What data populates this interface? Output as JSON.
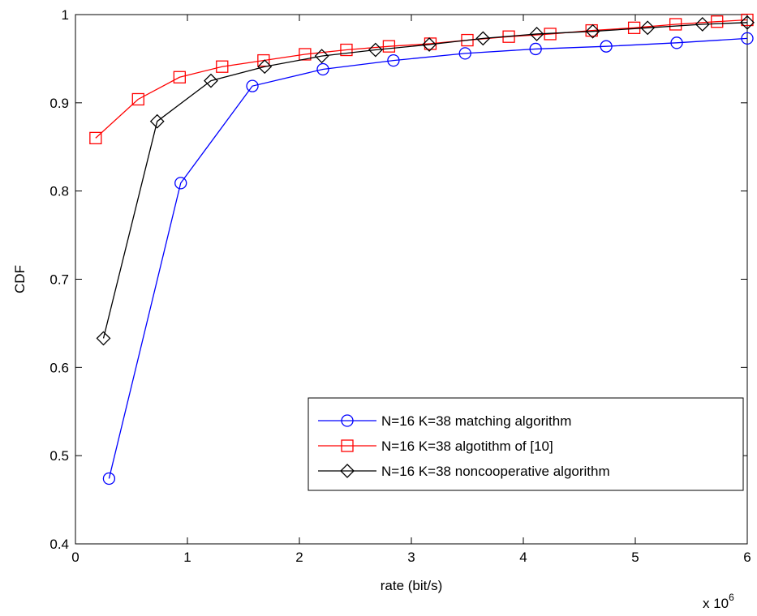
{
  "chart_data": {
    "type": "line",
    "title": "",
    "xlabel": "rate (bit/s)",
    "ylabel": "CDF",
    "x_multiplier": {
      "base": "x 10",
      "exponent": "6"
    },
    "xlim": [
      0,
      6
    ],
    "ylim": [
      0.4,
      1.0
    ],
    "x_ticks": [
      0,
      1,
      2,
      3,
      4,
      5,
      6
    ],
    "x_tick_labels": [
      "0",
      "1",
      "2",
      "3",
      "4",
      "5",
      "6"
    ],
    "y_ticks": [
      0.4,
      0.5,
      0.6,
      0.7,
      0.8,
      0.9,
      1.0
    ],
    "y_tick_labels": [
      "0.4",
      "0.5",
      "0.6",
      "0.7",
      "0.8",
      "0.9",
      "1"
    ],
    "grid": false,
    "box": true,
    "legend_position": "bottom-right",
    "series": [
      {
        "name": "N=16 K=38 matching algorithm",
        "color": "#0000ff",
        "marker": "circle",
        "x": [
          0.3,
          0.94,
          1.58,
          2.21,
          2.84,
          3.48,
          4.11,
          4.74,
          5.37,
          6.0
        ],
        "y": [
          0.474,
          0.809,
          0.919,
          0.938,
          0.948,
          0.956,
          0.961,
          0.964,
          0.968,
          0.973
        ]
      },
      {
        "name": "N=16 K=38 algotithm of [10]",
        "color": "#ff0000",
        "marker": "square",
        "x": [
          0.18,
          0.56,
          0.93,
          1.31,
          1.68,
          2.05,
          2.42,
          2.8,
          3.17,
          3.5,
          3.87,
          4.24,
          4.61,
          4.99,
          5.36,
          5.73,
          6.0
        ],
        "y": [
          0.86,
          0.904,
          0.929,
          0.941,
          0.948,
          0.955,
          0.96,
          0.964,
          0.967,
          0.971,
          0.975,
          0.978,
          0.982,
          0.985,
          0.989,
          0.992,
          0.994
        ]
      },
      {
        "name": "N=16 K=38 noncooperative algorithm",
        "color": "#000000",
        "marker": "diamond",
        "x": [
          0.25,
          0.73,
          1.21,
          1.69,
          2.2,
          2.68,
          3.16,
          3.64,
          4.12,
          4.62,
          5.11,
          5.6,
          6.0
        ],
        "y": [
          0.633,
          0.879,
          0.925,
          0.941,
          0.953,
          0.96,
          0.966,
          0.973,
          0.978,
          0.981,
          0.985,
          0.989,
          0.991
        ]
      }
    ]
  }
}
